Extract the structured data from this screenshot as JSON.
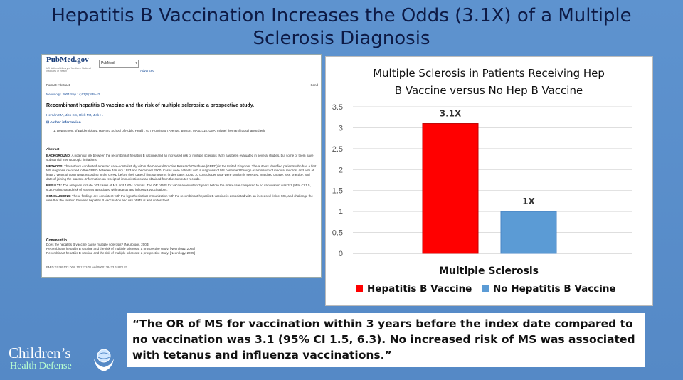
{
  "slide": {
    "title": "Hepatitis B Vaccination Increases the Odds (3.1X) of a Multiple Sclerosis Diagnosis"
  },
  "pubmed": {
    "logo": "PubMed.gov",
    "logo_sub": "US National Library of Medicine National Institutes of Health",
    "database_select": "PubMed",
    "advanced_link": "Advanced",
    "format_line": "Format: Abstract",
    "send_link": "Send",
    "journal_line": "Neurology. 2004 Sep 14;63(5):838-42.",
    "article_title": "Recombinant hepatitis B vaccine and the risk of multiple sclerosis: a prospective study.",
    "authors": "Hernán MA, Jick SS, Olek MJ, Jick H.",
    "author_info": "Author information",
    "affiliation": "1. Department of Epidemiology, Harvard School of Public Health, 677 Huntington Avenue, Boston, MA 02115, USA. miguel_hernan@post.harvard.edu",
    "abstract_heading": "Abstract",
    "background_label": "BACKGROUND:",
    "background_text": "A potential link between the recombinant hepatitis B vaccine and an increased risk of multiple sclerosis (MS) has been evaluated in several studies, but some of them have substantial methodologic limitations.",
    "methods_label": "METHODS:",
    "methods_text": "The authors conducted a nested case-control study within the General Practice Research Database (GPRD) in the United Kingdom. The authors identified patients who had a first MS diagnosis recorded in the GPRD between January 1993 and December 2000. Cases were patients with a diagnosis of MS confirmed through examination of medical records, and with at least 3 years of continuous recording in the GPRD before their date of first symptoms (index date). Up to 10 controls per case were randomly selected, matched on age, sex, practice, and date of joining the practice. Information on receipt of immunizations was obtained from the computer records.",
    "results_label": "RESULTS:",
    "results_text": "The analyses include 163 cases of MS and 1,604 controls. The OR of MS for vaccination within 3 years before the index date compared to no vaccination was 3.1 (95% CI 1.5, 6.3). No increased risk of MS was associated with tetanus and influenza vaccinations.",
    "conclusions_label": "CONCLUSIONS:",
    "conclusions_text": "These findings are consistent with the hypothesis that immunization with the recombinant hepatitis B vaccine is associated with an increased risk of MS, and challenge the idea that the relation between hepatitis B vaccination and risk of MS is well understood.",
    "comment_heading": "Comment in",
    "comment_1": "Does the hepatitis B vaccine cause multiple sclerosis? [Neurology. 2004]",
    "comment_2": "Recombinant hepatitis B vaccine and the risk of multiple sclerosis: a prospective study. [Neurology. 2005]",
    "comment_3": "Recombinant hepatitis B vaccine and the risk of multiple sclerosis: a prospective study. [Neurology. 2005]",
    "pmid_line": "PMID: 15365133   DOI: 10.1212/01.wnl.0000138433.61870.82"
  },
  "chart_data": {
    "type": "bar",
    "title": "Multiple Sclerosis in Patients Receiving Hep B Vaccine versus No Hep B Vaccine",
    "xlabel": "Multiple Sclerosis",
    "ylabel": "",
    "categories": [
      "Multiple Sclerosis"
    ],
    "series": [
      {
        "name": "Hepatitis B Vaccine",
        "values": [
          3.1
        ],
        "label": "3.1X",
        "color": "#ff0000"
      },
      {
        "name": "No Hepatitis B Vaccine",
        "values": [
          1
        ],
        "label": "1X",
        "color": "#5b9bd5"
      }
    ],
    "ylim": [
      0,
      3.5
    ],
    "yticks": [
      0,
      0.5,
      1,
      1.5,
      2,
      2.5,
      3,
      3.5
    ],
    "ytick_labels": [
      "0",
      "0.5",
      "1",
      "1.5",
      "2",
      "2.5",
      "3",
      "3.5"
    ],
    "grid": true,
    "legend": "bottom"
  },
  "quote": {
    "text": "“The OR of MS for vaccination within 3 years before the index date compared to no vaccination was 3.1 (95% CI 1.5, 6.3). No increased risk of MS was associated with tetanus and influenza vaccinations.”"
  },
  "logo": {
    "name": "Children’s",
    "sub": "Health Defense"
  }
}
